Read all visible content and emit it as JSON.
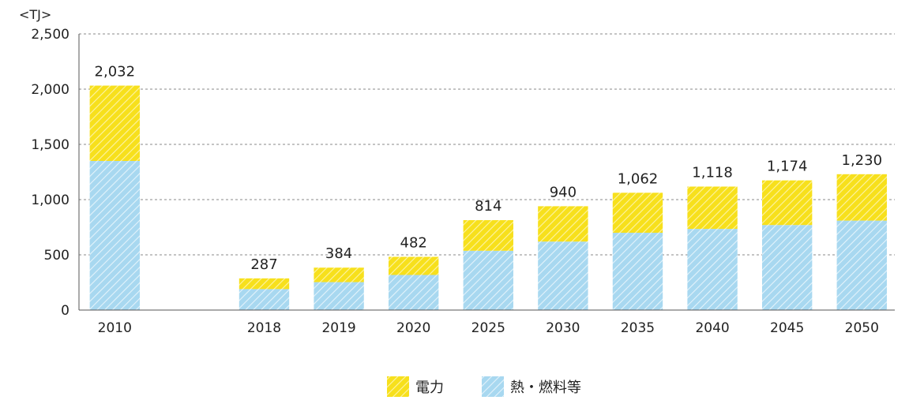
{
  "chart_data": {
    "type": "bar",
    "stacked": true,
    "unit_label": "<TJ>",
    "categories": [
      "2010",
      "2018",
      "2019",
      "2020",
      "2025",
      "2030",
      "2035",
      "2040",
      "2045",
      "2050"
    ],
    "gap_after_category": "2010",
    "series": [
      {
        "name": "熱・燃料等",
        "values": [
          1350,
          190,
          253,
          318,
          537,
          620,
          700,
          735,
          770,
          810
        ]
      },
      {
        "name": "電力",
        "values": [
          682,
          97,
          131,
          164,
          277,
          320,
          362,
          383,
          404,
          420
        ]
      }
    ],
    "totals": [
      "2,032",
      "287",
      "384",
      "482",
      "814",
      "940",
      "1,062",
      "1,118",
      "1,174",
      "1,230"
    ],
    "ylim": [
      0,
      2500
    ],
    "yticks": [
      0,
      500,
      1000,
      1500,
      2000,
      2500
    ],
    "ytick_labels": [
      "0",
      "500",
      "1,000",
      "1,500",
      "2,000",
      "2,500"
    ],
    "grid": true,
    "legend_position": "bottom-center",
    "legend": [
      "電力",
      "熱・燃料等"
    ],
    "colors": {
      "電力": "#f7e01c",
      "熱・燃料等": "#a8d8f0",
      "grid": "#888888",
      "axis": "#555555"
    }
  }
}
